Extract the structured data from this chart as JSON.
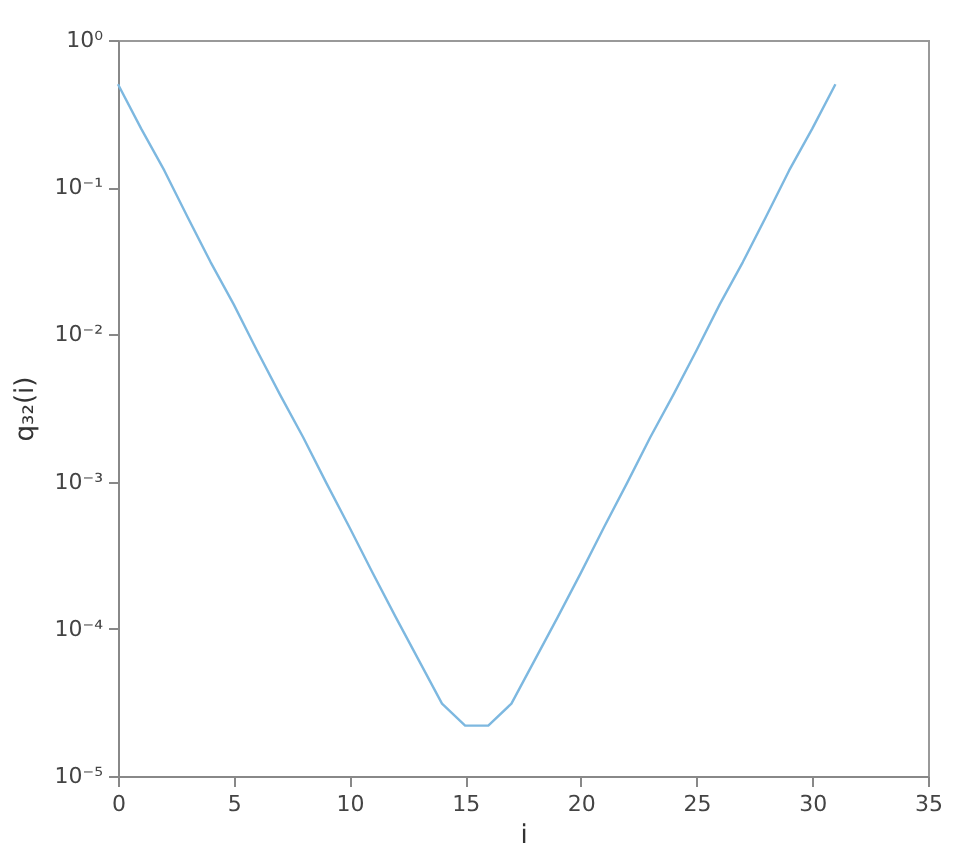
{
  "chart_data": {
    "type": "line",
    "xlabel": "i",
    "ylabel": "q₃₂(i)",
    "log": "y",
    "marker": "none",
    "line_style": "solid",
    "grid": false,
    "xlim": [
      0,
      35
    ],
    "xticks": [
      0,
      5,
      10,
      15,
      20,
      25,
      30,
      35
    ],
    "ylim": [
      1e-05,
      1
    ],
    "yticks": [
      {
        "value": 1e-05,
        "label": "10⁻⁵"
      },
      {
        "value": 0.0001,
        "label": "10⁻⁴"
      },
      {
        "value": 0.001,
        "label": "10⁻³"
      },
      {
        "value": 0.01,
        "label": "10⁻²"
      },
      {
        "value": 0.1,
        "label": "10⁻¹"
      },
      {
        "value": 1,
        "label": "10⁰"
      }
    ],
    "x": [
      0,
      1,
      2,
      3,
      4,
      5,
      6,
      7,
      8,
      9,
      10,
      11,
      12,
      13,
      14,
      15,
      16,
      17,
      18,
      19,
      20,
      21,
      22,
      23,
      24,
      25,
      26,
      27,
      28,
      29,
      30,
      31
    ],
    "series": [
      {
        "color": "#7db8e0",
        "values": [
          0.5,
          0.25,
          0.13,
          0.063,
          0.031,
          0.016,
          0.0078,
          0.0039,
          0.002,
          0.00098,
          0.00049,
          0.00024,
          0.00012,
          6.1e-05,
          3.1e-05,
          2.2e-05,
          2.2e-05,
          3.1e-05,
          6.1e-05,
          0.00012,
          0.00024,
          0.00049,
          0.00098,
          0.002,
          0.0039,
          0.0078,
          0.016,
          0.031,
          0.063,
          0.13,
          0.25,
          0.5
        ]
      }
    ]
  }
}
